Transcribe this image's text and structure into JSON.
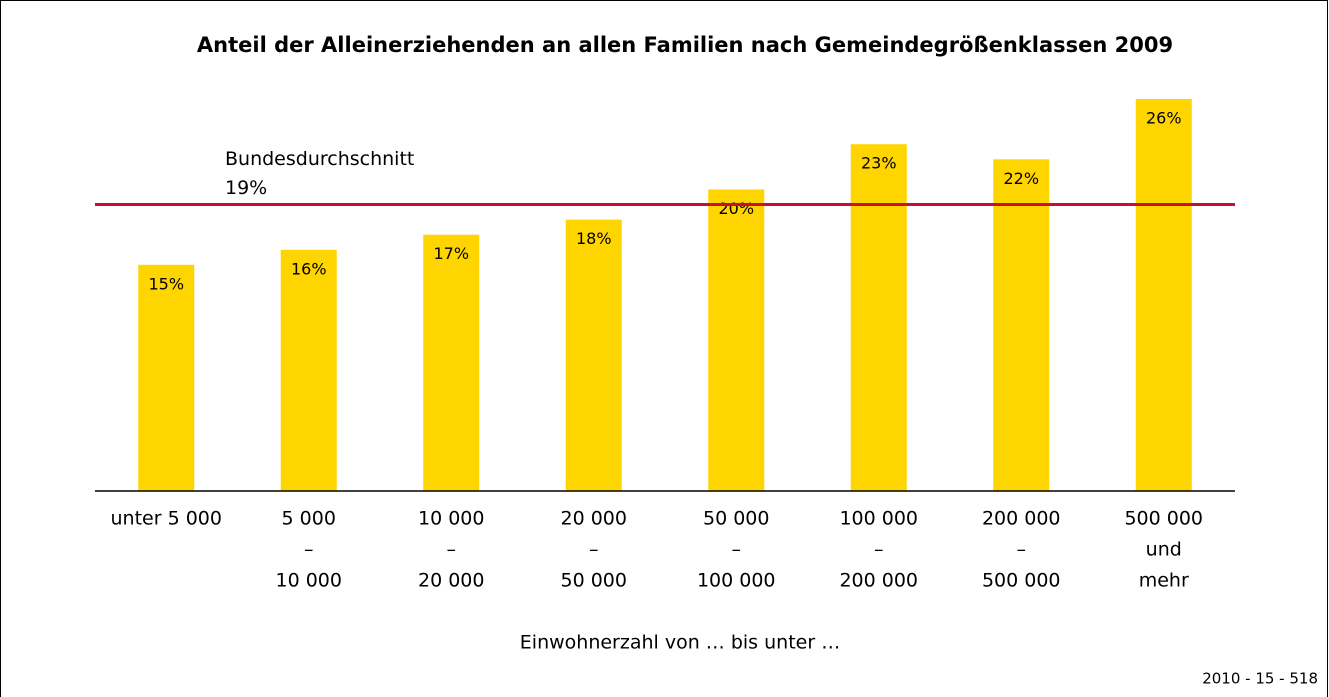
{
  "chart_data": {
    "type": "bar",
    "title": "Anteil der Alleinerziehenden an allen Familien nach Gemeindegrößenklassen 2009",
    "categories": [
      [
        "unter 5 000"
      ],
      [
        "5 000",
        "–",
        "10 000"
      ],
      [
        "10 000",
        "–",
        "20 000"
      ],
      [
        "20 000",
        "–",
        "50 000"
      ],
      [
        "50 000",
        "–",
        "100 000"
      ],
      [
        "100 000",
        "–",
        "200 000"
      ],
      [
        "200 000",
        "–",
        "500 000"
      ],
      [
        "500 000",
        "und",
        "mehr"
      ]
    ],
    "values": [
      15,
      16,
      17,
      18,
      20,
      23,
      22,
      26
    ],
    "value_labels": [
      "15%",
      "16%",
      "17%",
      "18%",
      "20%",
      "23%",
      "22%",
      "26%"
    ],
    "color": "#ffd500",
    "ylim": [
      0,
      26
    ],
    "reference_line": {
      "label": "Bundesdurchschnitt",
      "value": 19,
      "value_label": "19%",
      "color": "#c8102e"
    },
    "xlabel": "Einwohnerzahl von … bis unter …",
    "source": "2010 - 15 - 518"
  }
}
